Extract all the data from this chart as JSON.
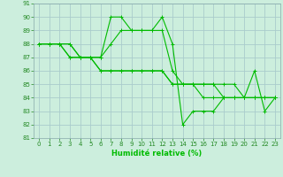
{
  "xlabel": "Humidité relative (%)",
  "background_color": "#cceedd",
  "grid_color": "#aacccc",
  "line_color": "#00bb00",
  "xlim": [
    -0.5,
    23.5
  ],
  "ylim": [
    81,
    91
  ],
  "yticks": [
    81,
    82,
    83,
    84,
    85,
    86,
    87,
    88,
    89,
    90,
    91
  ],
  "xticks": [
    0,
    1,
    2,
    3,
    4,
    5,
    6,
    7,
    8,
    9,
    10,
    11,
    12,
    13,
    14,
    15,
    16,
    17,
    18,
    19,
    20,
    21,
    22,
    23
  ],
  "series": [
    {
      "x": [
        0,
        1,
        2,
        3,
        4,
        5,
        6,
        7,
        8,
        9,
        10,
        11,
        12,
        13,
        14,
        15,
        16,
        17,
        18,
        19,
        20,
        21,
        22,
        23
      ],
      "y": [
        88,
        88,
        88,
        88,
        87,
        87,
        87,
        90,
        90,
        89,
        89,
        89,
        90,
        88,
        82,
        83,
        83,
        83,
        84,
        84,
        84,
        86,
        83,
        84
      ]
    },
    {
      "x": [
        0,
        1,
        2,
        3,
        4,
        5,
        6,
        7,
        8,
        9,
        10,
        11,
        12,
        13,
        14,
        15,
        16,
        17,
        18,
        19,
        20,
        21,
        22,
        23
      ],
      "y": [
        88,
        88,
        88,
        88,
        87,
        87,
        87,
        88,
        89,
        89,
        89,
        89,
        89,
        86,
        85,
        85,
        85,
        85,
        85,
        85,
        84,
        84,
        84,
        84
      ]
    },
    {
      "x": [
        0,
        1,
        2,
        3,
        4,
        5,
        6,
        7,
        8,
        9,
        10,
        11,
        12,
        13,
        14,
        15,
        16,
        17,
        18,
        19,
        20,
        21,
        22,
        23
      ],
      "y": [
        88,
        88,
        88,
        87,
        87,
        87,
        86,
        86,
        86,
        86,
        86,
        86,
        86,
        85,
        85,
        85,
        85,
        85,
        84,
        84,
        84,
        84,
        84,
        84
      ]
    },
    {
      "x": [
        0,
        1,
        2,
        3,
        4,
        5,
        6,
        7,
        8,
        9,
        10,
        11,
        12,
        13,
        14,
        15,
        16,
        17,
        18,
        19,
        20,
        21,
        22,
        23
      ],
      "y": [
        88,
        88,
        88,
        87,
        87,
        87,
        86,
        86,
        86,
        86,
        86,
        86,
        86,
        85,
        85,
        85,
        84,
        84,
        84,
        84,
        84,
        84,
        84,
        84
      ]
    }
  ]
}
